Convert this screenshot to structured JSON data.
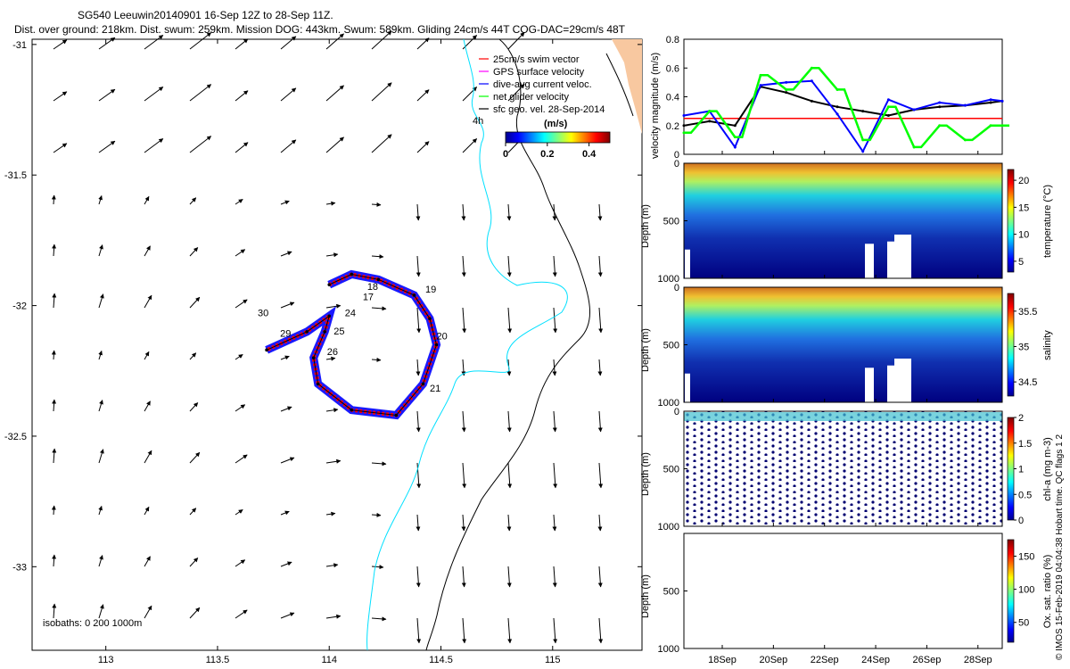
{
  "header": {
    "title": "SG540 Leeuwin20140901 16-Sep 12Z to 28-Sep 11Z.",
    "subtitle": "Dist. over ground: 218km. Dist. swum: 259km. Mission DOG: 443km. Swum: 589km. Gliding 24cm/s 44T COG-DAC=29cm/s 48T"
  },
  "map": {
    "xticks": [
      "113",
      "113.5",
      "114",
      "114.5",
      "115"
    ],
    "xtick_values": [
      113,
      113.5,
      114,
      114.5,
      115
    ],
    "yticks": [
      "-31",
      "-31.5",
      "-32",
      "-32.5",
      "-33"
    ],
    "ytick_values": [
      -31,
      -31.5,
      -32,
      -32.5,
      -33
    ],
    "xlim": [
      112.67,
      115.4
    ],
    "ylim": [
      -33.32,
      -30.98
    ],
    "legend": [
      {
        "label": "25cm/s swim vector",
        "color": "#ff0000"
      },
      {
        "label": "GPS surface velocity",
        "color": "#ff00ff"
      },
      {
        "label": "dive-avg current veloc.",
        "color": "#0000ff"
      },
      {
        "label": "net glider velocity",
        "color": "#00ff00"
      },
      {
        "label": "sfc geo. vel. 28-Sep-2014",
        "color": "#000000"
      }
    ],
    "legend_note": "4h",
    "colorbar": {
      "label": "(m/s)",
      "ticks": [
        "0",
        "0.2",
        "0.4"
      ],
      "tick_values": [
        0,
        0.2,
        0.4
      ],
      "range": [
        0,
        0.5
      ]
    },
    "isobath_label": "isobaths: 0   200   1000m",
    "day_labels": [
      {
        "text": "17",
        "lon": 114.15,
        "lat": -31.98
      },
      {
        "text": "18",
        "lon": 114.17,
        "lat": -31.94
      },
      {
        "text": "19",
        "lon": 114.43,
        "lat": -31.95
      },
      {
        "text": "20",
        "lon": 114.48,
        "lat": -32.13
      },
      {
        "text": "21",
        "lon": 114.45,
        "lat": -32.33
      },
      {
        "text": "24",
        "lon": 114.07,
        "lat": -32.04
      },
      {
        "text": "25",
        "lon": 114.02,
        "lat": -32.11
      },
      {
        "text": "26",
        "lon": 113.99,
        "lat": -32.19
      },
      {
        "text": "29",
        "lon": 113.78,
        "lat": -32.12
      },
      {
        "text": "30",
        "lon": 113.68,
        "lat": -32.04
      }
    ]
  },
  "panels": {
    "time_ticks": [
      "18Sep",
      "20Sep",
      "22Sep",
      "24Sep",
      "26Sep",
      "28Sep"
    ],
    "time_tick_values": [
      18,
      20,
      22,
      24,
      26,
      28
    ],
    "time_range": [
      16.5,
      28.95
    ],
    "velocity": {
      "ylabel": "velocity magnitude (m/s)",
      "yticks": [
        "0",
        "0.2",
        "0.4",
        "0.6",
        "0.8"
      ],
      "ytick_values": [
        0,
        0.2,
        0.4,
        0.6,
        0.8
      ],
      "ylim": [
        0,
        0.8
      ],
      "reference_line": 0.25
    },
    "sections": [
      {
        "ylabel": "Depth (m)",
        "yticks": [
          "0",
          "500",
          "1000"
        ],
        "cbar_label": "temperature (°C)",
        "cbar_ticks": [
          "5",
          "10",
          "15",
          "20"
        ],
        "cbar_values": [
          5,
          10,
          15,
          20
        ],
        "cbar_range": [
          3,
          22
        ]
      },
      {
        "ylabel": "Depth (m)",
        "yticks": [
          "0",
          "500",
          "1000"
        ],
        "cbar_label": "salinity",
        "cbar_ticks": [
          "34.5",
          "35",
          "35.5"
        ],
        "cbar_values": [
          34.5,
          35,
          35.5
        ],
        "cbar_range": [
          34.3,
          35.75
        ]
      },
      {
        "ylabel": "Depth (m)",
        "yticks": [
          "0",
          "500",
          "1000"
        ],
        "cbar_label": "chl-a (mg m-3)",
        "cbar_ticks": [
          "0",
          "0.5",
          "1",
          "1.5",
          "2"
        ],
        "cbar_values": [
          0,
          0.5,
          1,
          1.5,
          2
        ],
        "cbar_range": [
          0,
          2
        ]
      },
      {
        "ylabel": "Depth (m)",
        "yticks": [
          "500",
          "1000"
        ],
        "cbar_label": "Ox. sat. ratio (%)",
        "cbar_ticks": [
          "50",
          "100",
          "150"
        ],
        "cbar_values": [
          50,
          100,
          150
        ],
        "cbar_range": [
          20,
          175
        ]
      }
    ],
    "credit": "© IMOS 15-Feb-2019 04:04:38 Hobart time. QC flags 1  2"
  },
  "chart_data": [
    {
      "type": "scatter",
      "x": [
        114.0,
        114.1,
        114.22,
        114.38,
        114.45,
        114.48,
        114.42,
        114.3,
        114.1,
        113.95,
        113.93,
        113.98,
        114.0,
        113.9,
        113.72
      ],
      "y": [
        -31.92,
        -31.88,
        -31.9,
        -31.96,
        -32.05,
        -32.15,
        -32.3,
        -32.42,
        -32.4,
        -32.3,
        -32.2,
        -32.1,
        -32.04,
        -32.1,
        -32.17
      ]
    },
    {
      "type": "line",
      "x": [
        16.5,
        17.5,
        18.5,
        19.5,
        20.5,
        21.5,
        22.5,
        23.5,
        24.5,
        25.5,
        26.5,
        27.5,
        28.5,
        28.95
      ],
      "series": [
        {
          "name": "",
          "color": "#000000",
          "values": [
            0.2,
            0.23,
            0.2,
            0.47,
            0.43,
            0.37,
            0.33,
            0.3,
            0.27,
            0.31,
            0.33,
            0.34,
            0.36,
            0.37
          ]
        },
        {
          "name": "",
          "color": "#0000ff",
          "values": [
            0.27,
            0.3,
            0.05,
            0.48,
            0.5,
            0.51,
            0.28,
            0.02,
            0.38,
            0.31,
            0.36,
            0.34,
            0.38,
            0.37
          ]
        },
        {
          "name": "",
          "color": "#00ff00",
          "values": [
            0.15,
            0.3,
            0.12,
            0.55,
            0.45,
            0.6,
            0.45,
            0.1,
            0.33,
            0.05,
            0.2,
            0.1,
            0.2,
            0.2
          ]
        }
      ]
    }
  ]
}
